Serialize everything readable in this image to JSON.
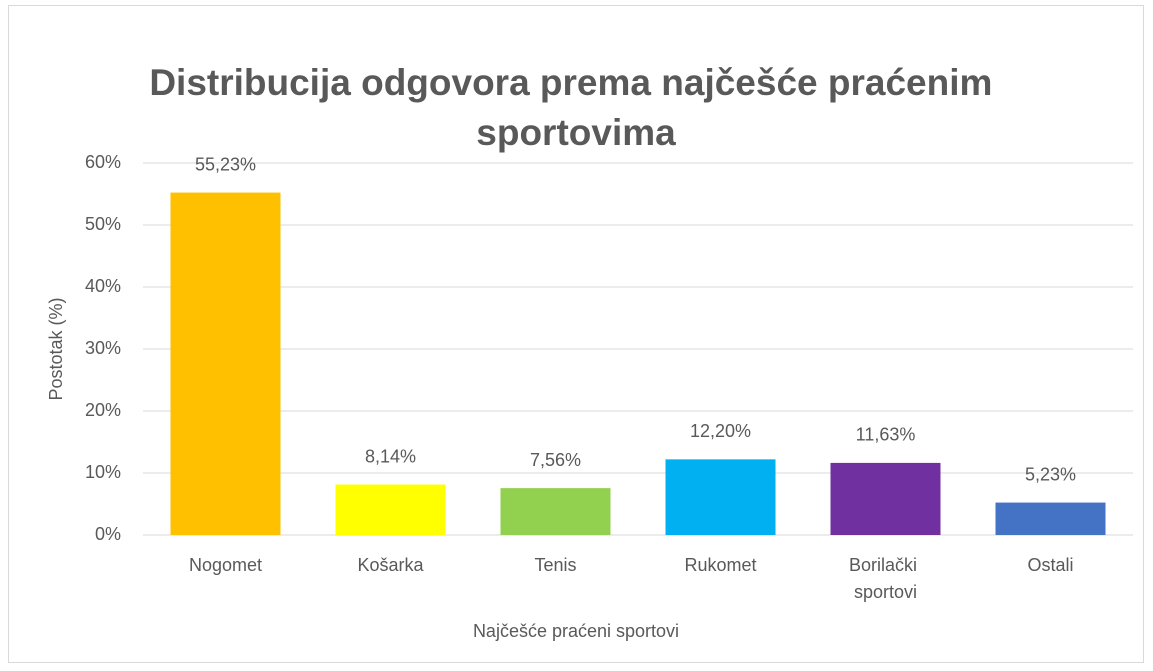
{
  "chart_data": {
    "type": "bar",
    "title": "Distribucija odgovora prema najčešće praćenim sportovima",
    "x_label": "Najčešće praćeni sportovi",
    "y_label": "Postotak (%)",
    "categories": [
      "Nogomet",
      "Košarka",
      "Tenis",
      "Rukomet",
      "Borilački sportovi",
      "Ostali"
    ],
    "values": [
      55.23,
      8.14,
      7.56,
      12.2,
      11.63,
      5.23
    ],
    "value_labels": [
      "55,23%",
      "8,14%",
      "7,56%",
      "12,20%",
      "11,63%",
      "5,23%"
    ],
    "colors": [
      "#FFC000",
      "#FFFF00",
      "#92D050",
      "#00B0F0",
      "#7030A0",
      "#4472C4"
    ],
    "ylim": [
      0,
      60
    ],
    "yticks": [
      {
        "value": 0,
        "label": "0%"
      },
      {
        "value": 10,
        "label": "10%"
      },
      {
        "value": 20,
        "label": "20%"
      },
      {
        "value": 30,
        "label": "30%"
      },
      {
        "value": 40,
        "label": "40%"
      },
      {
        "value": 50,
        "label": "50%"
      },
      {
        "value": 60,
        "label": "60%"
      }
    ],
    "grid": true
  }
}
